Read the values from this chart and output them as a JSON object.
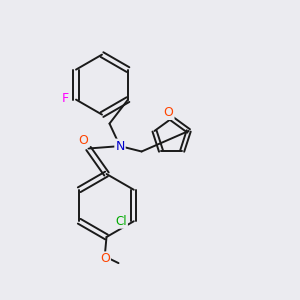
{
  "background_color": "#ebebf0",
  "bond_color": "#1a1a1a",
  "atom_colors": {
    "F": "#ff00ff",
    "O": "#ff4400",
    "N": "#0000cc",
    "Cl": "#00aa00",
    "C": "#1a1a1a"
  },
  "figsize": [
    3.0,
    3.0
  ],
  "dpi": 100
}
